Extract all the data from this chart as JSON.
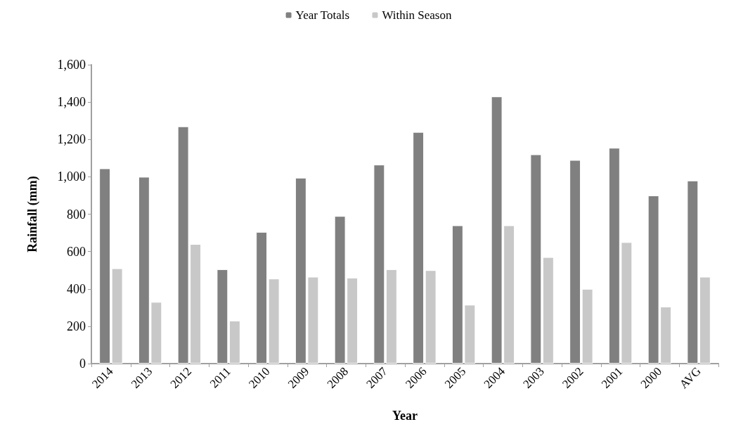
{
  "chart_data": {
    "type": "bar",
    "xlabel": "Year",
    "ylabel": "Rainfall (mm)",
    "categories": [
      "2014",
      "2013",
      "2012",
      "2011",
      "2010",
      "2009",
      "2008",
      "2007",
      "2006",
      "2005",
      "2004",
      "2003",
      "2002",
      "2001",
      "2000",
      "AVG"
    ],
    "series": [
      {
        "name": "Year Totals",
        "color": "#808080",
        "values": [
          1045,
          1000,
          1270,
          505,
          705,
          995,
          790,
          1065,
          1240,
          740,
          1430,
          1120,
          1090,
          1155,
          900,
          980
        ]
      },
      {
        "name": "Within Season",
        "color": "#c8c8c8",
        "values": [
          510,
          330,
          640,
          230,
          455,
          465,
          460,
          505,
          500,
          315,
          740,
          570,
          400,
          650,
          305,
          465
        ]
      }
    ],
    "ylim": [
      0,
      1600
    ],
    "yticks": [
      0,
      200,
      400,
      600,
      800,
      {
        "value": 1000,
        "label": "1,000"
      },
      {
        "value": 1200,
        "label": "1,200"
      },
      {
        "value": 1400,
        "label": "1,400"
      },
      {
        "value": 1600,
        "label": "1,600"
      }
    ],
    "grid": false,
    "legend": "top"
  }
}
